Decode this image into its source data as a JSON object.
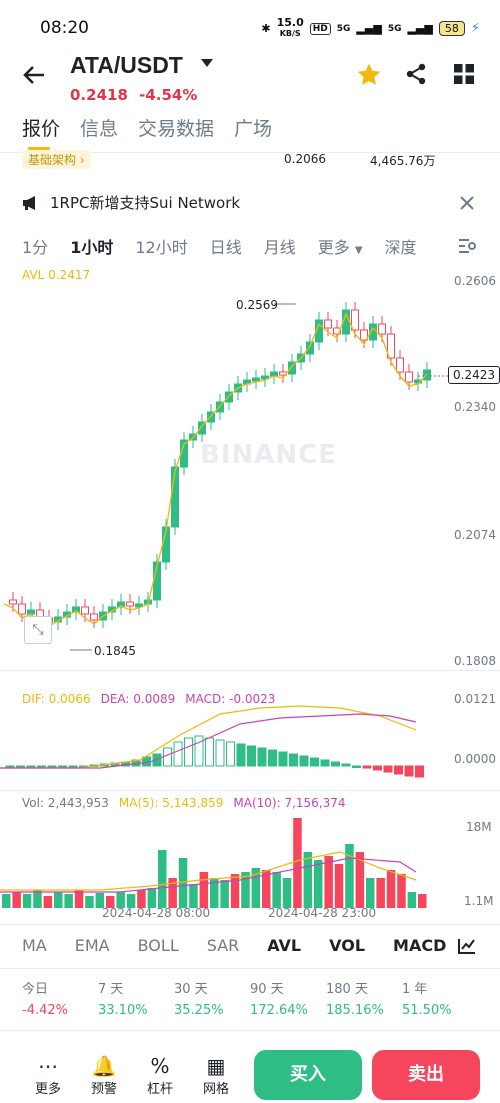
{
  "status_bar": {
    "time": "08:20",
    "network_speed": "15.0",
    "speed_unit": "KB/S",
    "hd": "HD",
    "net1": "5G",
    "net2": "5G",
    "battery": "58"
  },
  "header": {
    "pair": "ATA/USDT",
    "price": "0.2418",
    "change": "-4.54%"
  },
  "main_tabs": [
    "报价",
    "信息",
    "交易数据",
    "广场"
  ],
  "info_row": {
    "tag": "基础架构",
    "price": "0.2066",
    "volume": "4,465.76万"
  },
  "notice": {
    "text": "1RPC新增支持Sui Network"
  },
  "intervals": [
    "1分",
    "1小时",
    "12小时",
    "日线",
    "月线",
    "更多",
    "深度"
  ],
  "kline": {
    "avl_label": "AVL 0.2417",
    "price_ticks": [
      "0.2606",
      "0.2340",
      "0.2074",
      "0.1808"
    ],
    "current_price": "0.2423",
    "high_label": "0.2569",
    "low_label": "0.1845",
    "watermark": "BINANCE"
  },
  "macd": {
    "dif": "DIF: 0.0066",
    "dea": "DEA: 0.0089",
    "macd": "MACD: -0.0023",
    "ticks": [
      "0.0121",
      "0.0000"
    ]
  },
  "volume": {
    "vol": "Vol: 2,443,953",
    "ma5": "MA(5): 5,143,859",
    "ma10": "MA(10): 7,156,374",
    "ticks": [
      "18M",
      "1.1M"
    ],
    "dates": [
      "2024-04-28 08:00",
      "2024-04-28 23:00"
    ]
  },
  "indicator_tabs": [
    "MA",
    "EMA",
    "BOLL",
    "SAR",
    "AVL",
    "VOL",
    "MACD"
  ],
  "performance": [
    {
      "label": "今日",
      "value": "-4.42%"
    },
    {
      "label": "7 天",
      "value": "33.10%"
    },
    {
      "label": "30 天",
      "value": "35.25%"
    },
    {
      "label": "90 天",
      "value": "172.64%"
    },
    {
      "label": "180 天",
      "value": "185.16%"
    },
    {
      "label": "1 年",
      "value": "51.50%"
    }
  ],
  "bottom": {
    "more": "更多",
    "alert": "预警",
    "leverage": "杠杆",
    "grid": "网格",
    "buy": "买入",
    "sell": "卖出"
  },
  "colors": {
    "up": "#2ebd85",
    "down": "#f6465d",
    "avl": "#f0b90b",
    "dea": "#c844b5"
  }
}
